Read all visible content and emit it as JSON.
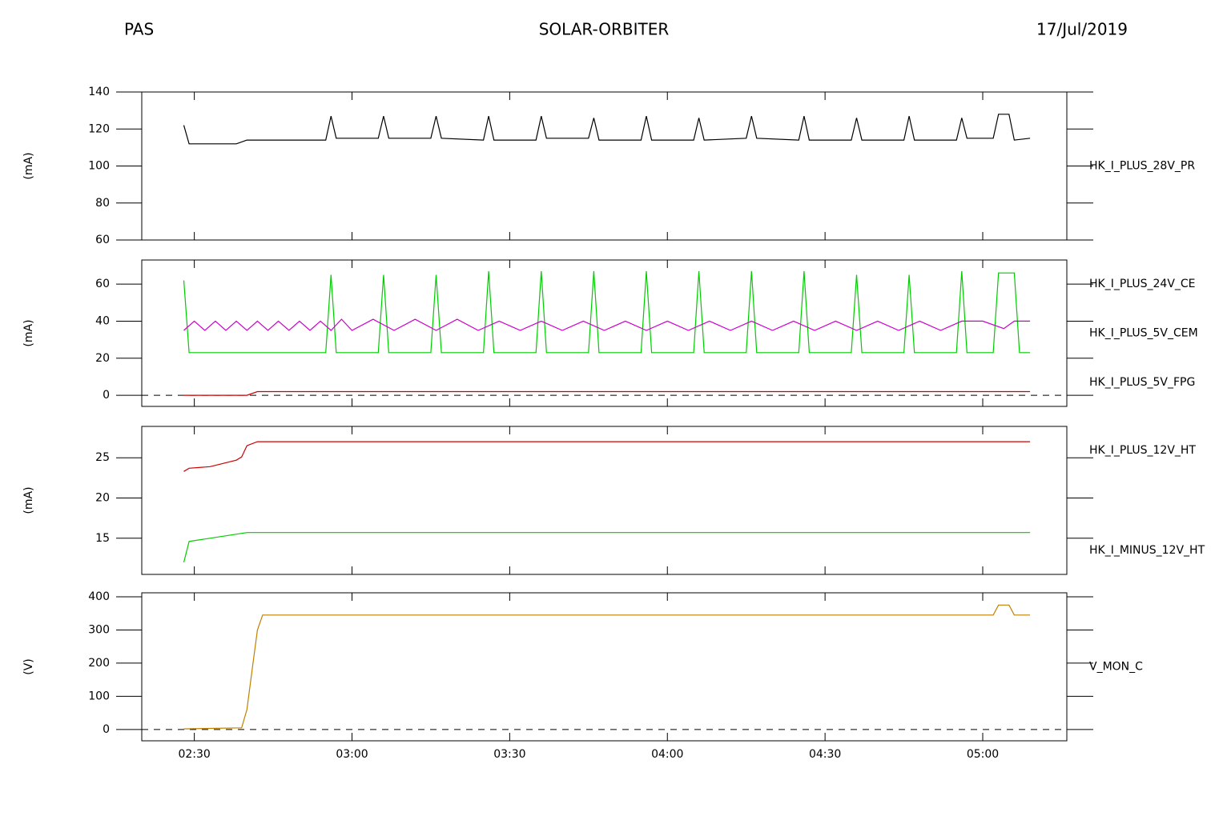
{
  "header": {
    "left": "PAS",
    "title": "SOLAR-ORBITER",
    "date": "17/Jul/2019"
  },
  "chart_data": [
    {
      "type": "line",
      "ylabel": "(mA)",
      "xlim": [
        "02:20",
        "05:16"
      ],
      "ylim": [
        60,
        140
      ],
      "yticks": [
        60,
        80,
        100,
        120,
        140
      ],
      "series": [
        {
          "name": "HK_I_PLUS_28V_PR",
          "color": "#000000",
          "x": [
            "02:28",
            "02:29",
            "02:38",
            "02:40",
            "02:55",
            "02:56",
            "02:57",
            "03:05",
            "03:06",
            "03:07",
            "03:15",
            "03:16",
            "03:17",
            "03:25",
            "03:26",
            "03:27",
            "03:35",
            "03:36",
            "03:37",
            "03:45",
            "03:46",
            "03:47",
            "03:55",
            "03:56",
            "03:57",
            "04:05",
            "04:06",
            "04:07",
            "04:15",
            "04:16",
            "04:17",
            "04:25",
            "04:26",
            "04:27",
            "04:35",
            "04:36",
            "04:37",
            "04:45",
            "04:46",
            "04:47",
            "04:55",
            "04:56",
            "04:57",
            "05:02",
            "05:03",
            "05:05",
            "05:06",
            "05:09"
          ],
          "values": [
            122,
            112,
            112,
            114,
            114,
            127,
            115,
            115,
            127,
            115,
            115,
            127,
            115,
            114,
            127,
            114,
            114,
            127,
            115,
            115,
            126,
            114,
            114,
            127,
            114,
            114,
            126,
            114,
            115,
            127,
            115,
            114,
            127,
            114,
            114,
            126,
            114,
            114,
            127,
            114,
            114,
            126,
            115,
            115,
            128,
            128,
            114,
            115
          ]
        }
      ]
    },
    {
      "type": "line",
      "ylabel": "(mA)",
      "xlim": [
        "02:20",
        "05:16"
      ],
      "ylim": [
        -6,
        73
      ],
      "yticks": [
        0,
        20,
        40,
        60
      ],
      "zero_line": true,
      "series": [
        {
          "name": "HK_I_PLUS_24V_CE",
          "color": "#cc0000",
          "x": [
            "02:28",
            "02:40",
            "02:42",
            "05:09"
          ],
          "values": [
            0,
            0,
            2,
            2
          ]
        },
        {
          "name": "HK_I_PLUS_5V_CEM",
          "color": "#00cc00",
          "x": [
            "02:28",
            "02:29",
            "02:55",
            "02:56",
            "02:57",
            "03:05",
            "03:06",
            "03:07",
            "03:15",
            "03:16",
            "03:17",
            "03:25",
            "03:26",
            "03:27",
            "03:35",
            "03:36",
            "03:37",
            "03:45",
            "03:46",
            "03:47",
            "03:55",
            "03:56",
            "03:57",
            "04:05",
            "04:06",
            "04:07",
            "04:15",
            "04:16",
            "04:17",
            "04:25",
            "04:26",
            "04:27",
            "04:35",
            "04:36",
            "04:37",
            "04:45",
            "04:46",
            "04:47",
            "04:55",
            "04:56",
            "04:57",
            "05:02",
            "05:03",
            "05:06",
            "05:07",
            "05:09"
          ],
          "values": [
            62,
            23,
            23,
            65,
            23,
            23,
            65,
            23,
            23,
            65,
            23,
            23,
            67,
            23,
            23,
            67,
            23,
            23,
            67,
            23,
            23,
            67,
            23,
            23,
            67,
            23,
            23,
            67,
            23,
            23,
            67,
            23,
            23,
            65,
            23,
            23,
            65,
            23,
            23,
            67,
            23,
            23,
            66,
            66,
            23,
            23
          ]
        },
        {
          "name": "HK_I_PLUS_5V_FPG",
          "color": "#cc00cc",
          "x": [
            "02:28",
            "02:30",
            "02:32",
            "02:34",
            "02:36",
            "02:38",
            "02:40",
            "02:42",
            "02:44",
            "02:46",
            "02:48",
            "02:50",
            "02:52",
            "02:54",
            "02:56",
            "02:58",
            "03:00",
            "03:04",
            "03:08",
            "03:12",
            "03:16",
            "03:20",
            "03:24",
            "03:28",
            "03:32",
            "03:36",
            "03:40",
            "03:44",
            "03:48",
            "03:52",
            "03:56",
            "04:00",
            "04:04",
            "04:08",
            "04:12",
            "04:16",
            "04:20",
            "04:24",
            "04:28",
            "04:32",
            "04:36",
            "04:40",
            "04:44",
            "04:48",
            "04:52",
            "04:56",
            "05:00",
            "05:04",
            "05:06",
            "05:09"
          ],
          "values": [
            35,
            40,
            35,
            40,
            35,
            40,
            35,
            40,
            35,
            40,
            35,
            40,
            35,
            40,
            35,
            41,
            35,
            41,
            35,
            41,
            35,
            41,
            35,
            40,
            35,
            40,
            35,
            40,
            35,
            40,
            35,
            40,
            35,
            40,
            35,
            40,
            35,
            40,
            35,
            40,
            35,
            40,
            35,
            40,
            35,
            40,
            40,
            36,
            40,
            40
          ]
        }
      ]
    },
    {
      "type": "line",
      "ylabel": "(mA)",
      "xlim": [
        "02:20",
        "05:16"
      ],
      "ylim": [
        10.5,
        28.9
      ],
      "yticks": [
        15,
        20,
        25
      ],
      "series": [
        {
          "name": "HK_I_PLUS_12V_HT",
          "color": "#cc0000",
          "x": [
            "02:28",
            "02:29",
            "02:33",
            "02:38",
            "02:39",
            "02:40",
            "02:42",
            "05:09"
          ],
          "values": [
            23.3,
            23.7,
            23.9,
            24.7,
            25.1,
            26.5,
            27.0,
            27.0
          ]
        },
        {
          "name": "HK_I_MINUS_12V_HT",
          "color": "#00cc00",
          "x": [
            "02:28",
            "02:29",
            "02:40",
            "05:09"
          ],
          "values": [
            12,
            14.6,
            15.7,
            15.7
          ]
        }
      ]
    },
    {
      "type": "line",
      "ylabel": "(V)",
      "xlim": [
        "02:20",
        "05:16"
      ],
      "ylim": [
        -34,
        412
      ],
      "yticks": [
        0,
        100,
        200,
        300,
        400
      ],
      "zero_line": true,
      "xticks": [
        "02:30",
        "03:00",
        "03:30",
        "04:00",
        "04:30",
        "05:00"
      ],
      "series": [
        {
          "name": "V_MON_C",
          "color": "#c08000",
          "x": [
            "02:28",
            "02:39",
            "02:40",
            "02:41",
            "02:42",
            "02:43",
            "05:02",
            "05:03",
            "05:05",
            "05:06",
            "05:09"
          ],
          "values": [
            2,
            5,
            60,
            180,
            300,
            345,
            345,
            375,
            375,
            345,
            345
          ]
        }
      ]
    }
  ]
}
